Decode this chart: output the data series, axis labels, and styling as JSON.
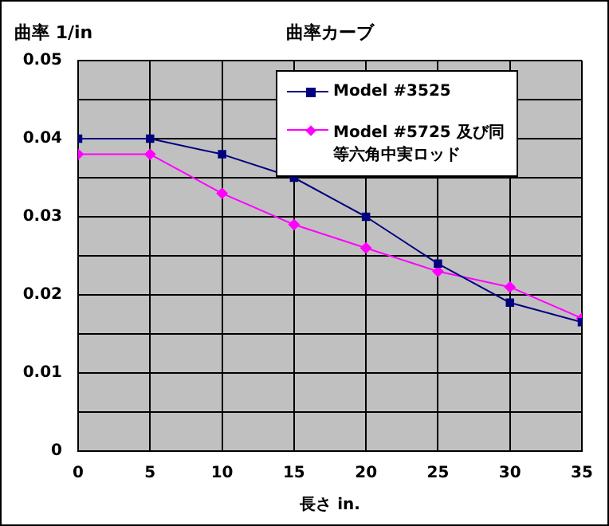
{
  "chart_data": {
    "type": "line",
    "title": "曲率カーブ",
    "ylabel": "曲率 1/in",
    "xlabel": "長さ in.",
    "x": [
      0,
      5,
      10,
      15,
      20,
      25,
      30,
      35
    ],
    "series": [
      {
        "name": "Model #3525",
        "color": "#000080",
        "marker": "square",
        "values": [
          0.04,
          0.04,
          0.038,
          0.035,
          0.03,
          0.024,
          0.019,
          0.0165
        ]
      },
      {
        "name": "Model #5725 及び同等六角中実ロッド",
        "color": "#ff00ff",
        "marker": "diamond",
        "values": [
          0.038,
          0.038,
          0.033,
          0.029,
          0.026,
          0.023,
          0.021,
          0.017
        ]
      }
    ],
    "xlim": [
      0,
      35
    ],
    "xticks": [
      0,
      5,
      10,
      15,
      20,
      25,
      30,
      35
    ],
    "ylim": [
      0,
      0.05
    ],
    "yticks": [
      0,
      {
        "value": 0.005,
        "label": null
      },
      0.01,
      {
        "value": 0.015,
        "label": null
      },
      0.02,
      {
        "value": 0.025,
        "label": null
      },
      0.03,
      {
        "value": 0.035,
        "label": null
      },
      0.04,
      {
        "value": 0.045,
        "label": null
      },
      0.05
    ],
    "grid": true,
    "legend": "top right",
    "line_style": "solid"
  }
}
